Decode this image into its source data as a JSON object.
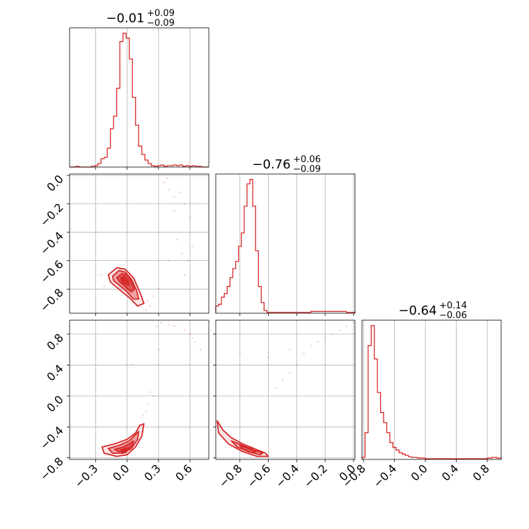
{
  "chart_data": {
    "type": "corner",
    "color": "#d62728",
    "parameters": [
      {
        "title": {
          "median": "−0.01",
          "plus": "+0.09",
          "minus": "−0.09"
        },
        "range": [
          -0.55,
          0.78
        ],
        "ticks": [
          "−0.3",
          "0.0",
          "0.3",
          "0.6"
        ],
        "tick_values": [
          -0.3,
          0.0,
          0.3,
          0.6
        ],
        "hist": {
          "bin_edges": [
            -0.55,
            -0.52,
            -0.49,
            -0.46,
            -0.43,
            -0.4,
            -0.37,
            -0.34,
            -0.31,
            -0.28,
            -0.25,
            -0.22,
            -0.19,
            -0.16,
            -0.13,
            -0.1,
            -0.07,
            -0.04,
            -0.01,
            0.02,
            0.05,
            0.08,
            0.11,
            0.14,
            0.17,
            0.2,
            0.23,
            0.26,
            0.29,
            0.32,
            0.35,
            0.38,
            0.41,
            0.44,
            0.47,
            0.5,
            0.53,
            0.56,
            0.59,
            0.62,
            0.65,
            0.68,
            0.71,
            0.74,
            0.78
          ],
          "counts": [
            0,
            0,
            1,
            0,
            0,
            0,
            0,
            1,
            2,
            5,
            12,
            14,
            27,
            55,
            73,
            113,
            180,
            192,
            185,
            155,
            100,
            60,
            30,
            18,
            10,
            5,
            2,
            1,
            2,
            3,
            1,
            2,
            2,
            3,
            2,
            3,
            1,
            2,
            1,
            2,
            1,
            1,
            0,
            0
          ]
        }
      },
      {
        "title": {
          "median": "−0.76",
          "plus": "+0.06",
          "minus": "−0.09"
        },
        "range": [
          -0.97,
          0.01
        ],
        "ticks": [
          "−0.8",
          "−0.6",
          "−0.4",
          "−0.2",
          "0.0"
        ],
        "tick_values": [
          -0.8,
          -0.6,
          -0.4,
          -0.2,
          0.0
        ],
        "y_ticks": [
          "0.0",
          "−0.2",
          "−0.4",
          "−0.6",
          "−0.8"
        ],
        "y_tick_values": [
          0.0,
          -0.2,
          -0.4,
          -0.6,
          -0.8
        ],
        "hist": {
          "bin_edges": [
            -0.97,
            -0.95,
            -0.93,
            -0.91,
            -0.89,
            -0.87,
            -0.85,
            -0.83,
            -0.81,
            -0.79,
            -0.77,
            -0.75,
            -0.73,
            -0.71,
            -0.69,
            -0.67,
            -0.65,
            -0.63,
            -0.61,
            -0.59,
            -0.57,
            -0.55,
            -0.5,
            -0.4,
            -0.3,
            -0.2,
            -0.1,
            -0.05,
            0.01
          ],
          "counts": [
            8,
            10,
            18,
            22,
            30,
            40,
            50,
            58,
            75,
            90,
            120,
            145,
            150,
            120,
            70,
            30,
            12,
            3,
            1,
            1,
            1,
            1,
            1,
            1,
            2,
            2,
            2,
            1
          ]
        }
      },
      {
        "title": {
          "median": "−0.64",
          "plus": "+0.14",
          "minus": "−0.06"
        },
        "range": [
          -0.82,
          0.98
        ],
        "ticks": [
          "−0.8",
          "−0.4",
          "0.0",
          "0.4",
          "0.8"
        ],
        "tick_values": [
          -0.8,
          -0.4,
          0.0,
          0.4,
          0.8
        ],
        "y_ticks": [
          "0.8",
          "0.4",
          "0.0",
          "−0.4",
          "−0.8"
        ],
        "y_tick_values": [
          0.8,
          0.4,
          0.0,
          -0.4,
          -0.8
        ],
        "hist": {
          "bin_edges": [
            -0.82,
            -0.78,
            -0.74,
            -0.7,
            -0.66,
            -0.62,
            -0.58,
            -0.54,
            -0.5,
            -0.46,
            -0.42,
            -0.38,
            -0.34,
            -0.3,
            -0.26,
            -0.22,
            -0.18,
            -0.1,
            0.0,
            0.1,
            0.2,
            0.3,
            0.4,
            0.5,
            0.6,
            0.7,
            0.8,
            0.86,
            0.92,
            0.98
          ],
          "counts": [
            3,
            40,
            170,
            200,
            150,
            100,
            70,
            55,
            40,
            25,
            18,
            14,
            10,
            8,
            6,
            4,
            3,
            2,
            1,
            1,
            1,
            1,
            1,
            1,
            1,
            1,
            2,
            3,
            2
          ]
        }
      }
    ],
    "pairs": [
      {
        "x_param": 0,
        "y_param": 1,
        "peak": [
          -0.04,
          -0.74
        ],
        "contours": [
          [
            [
              -0.18,
              -0.7
            ],
            [
              -0.1,
              -0.65
            ],
            [
              -0.02,
              -0.66
            ],
            [
              0.06,
              -0.72
            ],
            [
              0.12,
              -0.82
            ],
            [
              0.16,
              -0.9
            ],
            [
              0.1,
              -0.92
            ],
            [
              0.02,
              -0.86
            ],
            [
              -0.08,
              -0.8
            ],
            [
              -0.16,
              -0.75
            ]
          ],
          [
            [
              -0.14,
              -0.71
            ],
            [
              -0.08,
              -0.67
            ],
            [
              -0.02,
              -0.68
            ],
            [
              0.04,
              -0.73
            ],
            [
              0.09,
              -0.81
            ],
            [
              0.11,
              -0.87
            ],
            [
              0.06,
              -0.87
            ],
            [
              0.0,
              -0.82
            ],
            [
              -0.08,
              -0.77
            ],
            [
              -0.13,
              -0.74
            ]
          ],
          [
            [
              -0.1,
              -0.72
            ],
            [
              -0.05,
              -0.69
            ],
            [
              0.0,
              -0.7
            ],
            [
              0.04,
              -0.75
            ],
            [
              0.07,
              -0.8
            ],
            [
              0.04,
              -0.82
            ],
            [
              -0.01,
              -0.79
            ],
            [
              -0.07,
              -0.75
            ]
          ],
          [
            [
              -0.06,
              -0.72
            ],
            [
              -0.02,
              -0.71
            ],
            [
              0.01,
              -0.74
            ],
            [
              0.02,
              -0.77
            ],
            [
              -0.01,
              -0.77
            ],
            [
              -0.05,
              -0.75
            ]
          ]
        ],
        "outliers": [
          [
            0.35,
            -0.05
          ],
          [
            0.4,
            -0.1
          ],
          [
            0.45,
            -0.15
          ],
          [
            0.5,
            -0.12
          ],
          [
            0.55,
            -0.2
          ],
          [
            0.6,
            -0.3
          ],
          [
            0.48,
            -0.45
          ],
          [
            0.52,
            -0.55
          ],
          [
            0.58,
            -0.6
          ],
          [
            0.62,
            -0.5
          ],
          [
            0.4,
            -0.6
          ],
          [
            0.3,
            -0.8
          ],
          [
            0.25,
            -0.85
          ],
          [
            0.22,
            -0.92
          ],
          [
            0.18,
            -0.95
          ],
          [
            0.55,
            -0.7
          ],
          [
            0.45,
            -0.25
          ],
          [
            0.38,
            -0.02
          ],
          [
            0.2,
            -0.88
          ],
          [
            -0.25,
            -0.7
          ],
          [
            -0.22,
            -0.78
          ]
        ]
      },
      {
        "x_param": 0,
        "y_param": 2,
        "peak": [
          -0.02,
          -0.72
        ],
        "contours": [
          [
            [
              -0.24,
              -0.66
            ],
            [
              -0.12,
              -0.62
            ],
            [
              0.0,
              -0.56
            ],
            [
              0.08,
              -0.48
            ],
            [
              0.12,
              -0.38
            ],
            [
              0.16,
              -0.36
            ],
            [
              0.14,
              -0.52
            ],
            [
              0.08,
              -0.66
            ],
            [
              0.0,
              -0.76
            ],
            [
              -0.1,
              -0.78
            ],
            [
              -0.22,
              -0.74
            ]
          ],
          [
            [
              -0.18,
              -0.68
            ],
            [
              -0.08,
              -0.64
            ],
            [
              0.02,
              -0.58
            ],
            [
              0.08,
              -0.5
            ],
            [
              0.11,
              -0.46
            ],
            [
              0.1,
              -0.56
            ],
            [
              0.04,
              -0.68
            ],
            [
              -0.04,
              -0.74
            ],
            [
              -0.14,
              -0.74
            ]
          ],
          [
            [
              -0.12,
              -0.69
            ],
            [
              -0.04,
              -0.66
            ],
            [
              0.03,
              -0.61
            ],
            [
              0.06,
              -0.58
            ],
            [
              0.05,
              -0.64
            ],
            [
              0.0,
              -0.7
            ],
            [
              -0.08,
              -0.72
            ]
          ],
          [
            [
              -0.06,
              -0.7
            ],
            [
              0.0,
              -0.67
            ],
            [
              0.02,
              -0.68
            ],
            [
              -0.01,
              -0.72
            ],
            [
              -0.05,
              -0.73
            ]
          ]
        ],
        "outliers": [
          [
            0.2,
            -0.1
          ],
          [
            0.25,
            0.0
          ],
          [
            0.22,
            0.05
          ],
          [
            0.3,
            0.6
          ],
          [
            0.32,
            0.95
          ],
          [
            0.45,
            0.9
          ],
          [
            0.55,
            0.85
          ],
          [
            0.6,
            0.8
          ],
          [
            0.65,
            0.7
          ],
          [
            0.7,
            0.6
          ],
          [
            0.62,
            0.75
          ],
          [
            0.05,
            0.4
          ],
          [
            0.18,
            -0.2
          ],
          [
            0.15,
            -0.25
          ],
          [
            0.28,
            0.9
          ],
          [
            0.4,
            0.92
          ]
        ]
      },
      {
        "x_param": 1,
        "y_param": 2,
        "peak": [
          -0.72,
          -0.68
        ],
        "contours": [
          [
            [
              -0.96,
              -0.32
            ],
            [
              -0.92,
              -0.44
            ],
            [
              -0.86,
              -0.54
            ],
            [
              -0.78,
              -0.62
            ],
            [
              -0.7,
              -0.68
            ],
            [
              -0.62,
              -0.74
            ],
            [
              -0.6,
              -0.78
            ],
            [
              -0.68,
              -0.78
            ],
            [
              -0.78,
              -0.72
            ],
            [
              -0.88,
              -0.62
            ],
            [
              -0.95,
              -0.48
            ]
          ],
          [
            [
              -0.86,
              -0.58
            ],
            [
              -0.78,
              -0.64
            ],
            [
              -0.7,
              -0.7
            ],
            [
              -0.64,
              -0.74
            ],
            [
              -0.66,
              -0.76
            ],
            [
              -0.74,
              -0.72
            ],
            [
              -0.82,
              -0.66
            ]
          ],
          [
            [
              -0.8,
              -0.64
            ],
            [
              -0.72,
              -0.69
            ],
            [
              -0.68,
              -0.72
            ],
            [
              -0.72,
              -0.73
            ],
            [
              -0.78,
              -0.69
            ]
          ]
        ],
        "outliers": [
          [
            -0.55,
            0.1
          ],
          [
            -0.5,
            0.2
          ],
          [
            -0.45,
            0.3
          ],
          [
            -0.4,
            0.4
          ],
          [
            -0.35,
            0.55
          ],
          [
            -0.3,
            0.65
          ],
          [
            -0.2,
            0.75
          ],
          [
            -0.1,
            0.85
          ],
          [
            -0.05,
            0.9
          ],
          [
            0.0,
            0.95
          ],
          [
            -0.6,
            0.5
          ],
          [
            -0.8,
            0.55
          ],
          [
            -0.25,
            0.7
          ],
          [
            -0.15,
            0.8
          ],
          [
            -0.45,
            0.6
          ]
        ]
      }
    ]
  }
}
